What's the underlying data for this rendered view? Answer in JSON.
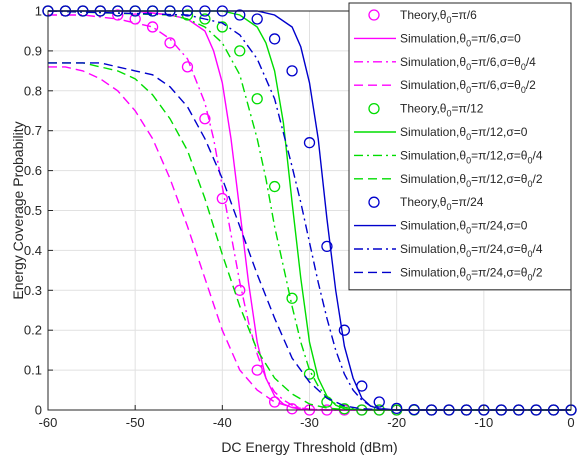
{
  "chart_data": {
    "type": "line",
    "xlabel": "DC Energy Threshold (dBm)",
    "ylabel": "Energy Coverage Probability",
    "xlim": [
      -60,
      0
    ],
    "ylim": [
      0,
      1
    ],
    "xticks": [
      -60,
      -50,
      -40,
      -30,
      -20,
      -10,
      0
    ],
    "xtick_labels": [
      "-60",
      "-50",
      "-40",
      "-30",
      "-20",
      "-10",
      "0"
    ],
    "yticks": [
      0,
      0.1,
      0.2,
      0.3,
      0.4,
      0.5,
      0.6,
      0.7,
      0.8,
      0.9,
      1
    ],
    "ytick_labels": [
      "0",
      "0.1",
      "0.2",
      "0.3",
      "0.4",
      "0.5",
      "0.6",
      "0.7",
      "0.8",
      "0.9",
      "1"
    ],
    "grid": true,
    "legend_position": "top-right",
    "colors": {
      "pi6": "#ff00ff",
      "pi12": "#00dd00",
      "pi24": "#0000cc"
    },
    "series": [
      {
        "label": "Theory, θ0 = π/6",
        "kind": "markers",
        "color": "pi6",
        "x": [
          -60,
          -58,
          -56,
          -54,
          -52,
          -50,
          -48,
          -46,
          -44,
          -42,
          -40,
          -38,
          -36,
          -34,
          -32,
          -30,
          -28,
          -26,
          -24,
          -22,
          -20,
          -18,
          -16,
          -14,
          -12,
          -10,
          -8,
          -6,
          -4,
          -2,
          0
        ],
        "y": [
          1,
          1,
          1,
          1,
          0.99,
          0.98,
          0.96,
          0.92,
          0.86,
          0.73,
          0.53,
          0.3,
          0.1,
          0.02,
          0.003,
          0,
          0,
          0,
          0,
          0,
          0,
          0,
          0,
          0,
          0,
          0,
          0,
          0,
          0,
          0,
          0
        ]
      },
      {
        "label": "Simulation, θ0 = π/6, σ = 0",
        "kind": "solid",
        "color": "pi6",
        "x": [
          -60,
          -50,
          -46,
          -44,
          -42,
          -41,
          -40,
          -39,
          -38,
          -37,
          -36,
          -35,
          -34,
          -33,
          -32,
          -31,
          -30,
          -28,
          0
        ],
        "y": [
          1,
          1,
          0.99,
          0.98,
          0.95,
          0.9,
          0.82,
          0.68,
          0.5,
          0.32,
          0.17,
          0.08,
          0.035,
          0.015,
          0.006,
          0.002,
          0,
          0,
          0
        ]
      },
      {
        "label": "Simulation, θ0 = π/6, σ = θ0/4",
        "kind": "dashdot",
        "color": "pi6",
        "x": [
          -60,
          -56,
          -52,
          -50,
          -48,
          -46,
          -44,
          -42,
          -41,
          -40,
          -39,
          -38,
          -37,
          -36,
          -35,
          -34,
          -33,
          -32,
          -31,
          -30,
          -28,
          0
        ],
        "y": [
          0.99,
          0.99,
          0.98,
          0.97,
          0.96,
          0.93,
          0.88,
          0.77,
          0.68,
          0.56,
          0.44,
          0.32,
          0.22,
          0.14,
          0.08,
          0.045,
          0.025,
          0.012,
          0.005,
          0.002,
          0,
          0
        ]
      },
      {
        "label": "Simulation, θ0 = π/6, σ = θ0/2",
        "kind": "dashed",
        "color": "pi6",
        "x": [
          -60,
          -58,
          -56,
          -54,
          -52,
          -50,
          -48,
          -46,
          -44,
          -42,
          -40,
          -38,
          -36,
          -34,
          -32,
          -30,
          -28,
          -26,
          0
        ],
        "y": [
          0.86,
          0.86,
          0.85,
          0.83,
          0.8,
          0.75,
          0.68,
          0.58,
          0.46,
          0.33,
          0.2,
          0.1,
          0.05,
          0.02,
          0.007,
          0.002,
          0,
          0,
          0
        ]
      },
      {
        "label": "Theory, θ0 = π/12",
        "kind": "markers",
        "color": "pi12",
        "x": [
          -60,
          -58,
          -56,
          -54,
          -52,
          -50,
          -48,
          -46,
          -44,
          -42,
          -40,
          -38,
          -36,
          -34,
          -32,
          -30,
          -28,
          -26,
          -24,
          -22,
          -20,
          -18,
          -16,
          -14,
          -12,
          -10,
          -8,
          -6,
          -4,
          -2,
          0
        ],
        "y": [
          1,
          1,
          1,
          1,
          1,
          1,
          1,
          1,
          0.99,
          0.98,
          0.96,
          0.9,
          0.78,
          0.56,
          0.28,
          0.09,
          0.02,
          0.003,
          0,
          0,
          0,
          0,
          0,
          0,
          0,
          0,
          0,
          0,
          0,
          0,
          0
        ]
      },
      {
        "label": "Simulation, θ0 = π/12, σ = 0",
        "kind": "solid",
        "color": "pi12",
        "x": [
          -60,
          -40,
          -38,
          -36,
          -35,
          -34,
          -33,
          -32,
          -31,
          -30,
          -29,
          -28,
          -27,
          -26,
          -24,
          0
        ],
        "y": [
          1,
          1,
          0.99,
          0.96,
          0.92,
          0.85,
          0.72,
          0.52,
          0.33,
          0.17,
          0.08,
          0.035,
          0.012,
          0.003,
          0,
          0
        ]
      },
      {
        "label": "Simulation, θ0 = π/12, σ = θ0/4",
        "kind": "dashdot",
        "color": "pi12",
        "x": [
          -60,
          -46,
          -44,
          -42,
          -40,
          -38,
          -36,
          -35,
          -34,
          -33,
          -32,
          -31,
          -30,
          -29,
          -28,
          -27,
          -26,
          -24,
          -22,
          0
        ],
        "y": [
          1,
          0.99,
          0.98,
          0.96,
          0.92,
          0.84,
          0.68,
          0.58,
          0.46,
          0.36,
          0.26,
          0.17,
          0.1,
          0.06,
          0.03,
          0.015,
          0.007,
          0.001,
          0,
          0
        ]
      },
      {
        "label": "Simulation, θ0 = π/12, σ = θ0/2",
        "kind": "dashed",
        "color": "pi12",
        "x": [
          -60,
          -56,
          -54,
          -52,
          -50,
          -48,
          -46,
          -44,
          -42,
          -40,
          -38,
          -36,
          -34,
          -32,
          -30,
          -28,
          -26,
          -24,
          -22,
          0
        ],
        "y": [
          0.87,
          0.87,
          0.86,
          0.85,
          0.83,
          0.79,
          0.73,
          0.65,
          0.53,
          0.39,
          0.26,
          0.15,
          0.08,
          0.04,
          0.015,
          0.005,
          0.001,
          0,
          0,
          0
        ]
      },
      {
        "label": "Theory, θ0 = π/24",
        "kind": "markers",
        "color": "pi24",
        "x": [
          -60,
          -58,
          -56,
          -54,
          -52,
          -50,
          -48,
          -46,
          -44,
          -42,
          -40,
          -38,
          -36,
          -34,
          -32,
          -30,
          -28,
          -26,
          -24,
          -22,
          -20,
          -18,
          -16,
          -14,
          -12,
          -10,
          -8,
          -6,
          -4,
          -2,
          0
        ],
        "y": [
          1,
          1,
          1,
          1,
          1,
          1,
          1,
          1,
          1,
          1,
          1,
          0.99,
          0.98,
          0.93,
          0.85,
          0.67,
          0.41,
          0.2,
          0.06,
          0.02,
          0.004,
          0.001,
          0,
          0,
          0,
          0,
          0,
          0,
          0,
          0,
          0
        ]
      },
      {
        "label": "Simulation, θ0 = π/24, σ = 0",
        "kind": "solid",
        "color": "pi24",
        "x": [
          -60,
          -36,
          -34,
          -32,
          -31,
          -30,
          -29,
          -28,
          -27,
          -26,
          -25,
          -24,
          -23,
          -22,
          -21,
          -20,
          0
        ],
        "y": [
          1,
          1,
          0.99,
          0.96,
          0.91,
          0.82,
          0.68,
          0.48,
          0.3,
          0.16,
          0.08,
          0.03,
          0.01,
          0.003,
          0.001,
          0,
          0
        ]
      },
      {
        "label": "Simulation, θ0 = π/24, σ = θ0/4",
        "kind": "dashdot",
        "color": "pi24",
        "x": [
          -60,
          -44,
          -42,
          -40,
          -38,
          -36,
          -34,
          -32,
          -31,
          -30,
          -29,
          -28,
          -27,
          -26,
          -25,
          -24,
          -23,
          -22,
          -20,
          0
        ],
        "y": [
          1,
          0.99,
          0.98,
          0.97,
          0.94,
          0.88,
          0.78,
          0.61,
          0.52,
          0.42,
          0.32,
          0.23,
          0.15,
          0.09,
          0.05,
          0.025,
          0.01,
          0.004,
          0,
          0
        ]
      },
      {
        "label": "Simulation, θ0 = π/24, σ = θ0/2",
        "kind": "dashed",
        "color": "pi24",
        "x": [
          -60,
          -54,
          -52,
          -50,
          -48,
          -46,
          -44,
          -42,
          -40,
          -38,
          -36,
          -34,
          -32,
          -30,
          -28,
          -26,
          -24,
          -22,
          -20,
          0
        ],
        "y": [
          0.87,
          0.87,
          0.86,
          0.85,
          0.84,
          0.81,
          0.76,
          0.68,
          0.58,
          0.46,
          0.34,
          0.23,
          0.13,
          0.07,
          0.03,
          0.01,
          0.003,
          0.001,
          0,
          0
        ]
      }
    ]
  }
}
